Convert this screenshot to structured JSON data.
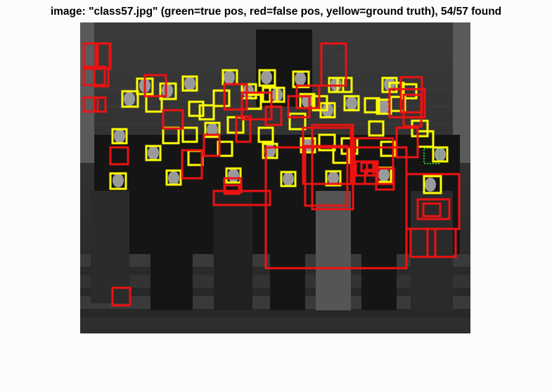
{
  "title": "image: \"class57.jpg\" (green=true pos, red=false pos, yellow=ground truth), 54/57 found",
  "colors": {
    "true_positive": "#22cc22",
    "false_positive": "#ee1111",
    "ground_truth": "#ffff00",
    "background": "#fcfcfc"
  }
}
